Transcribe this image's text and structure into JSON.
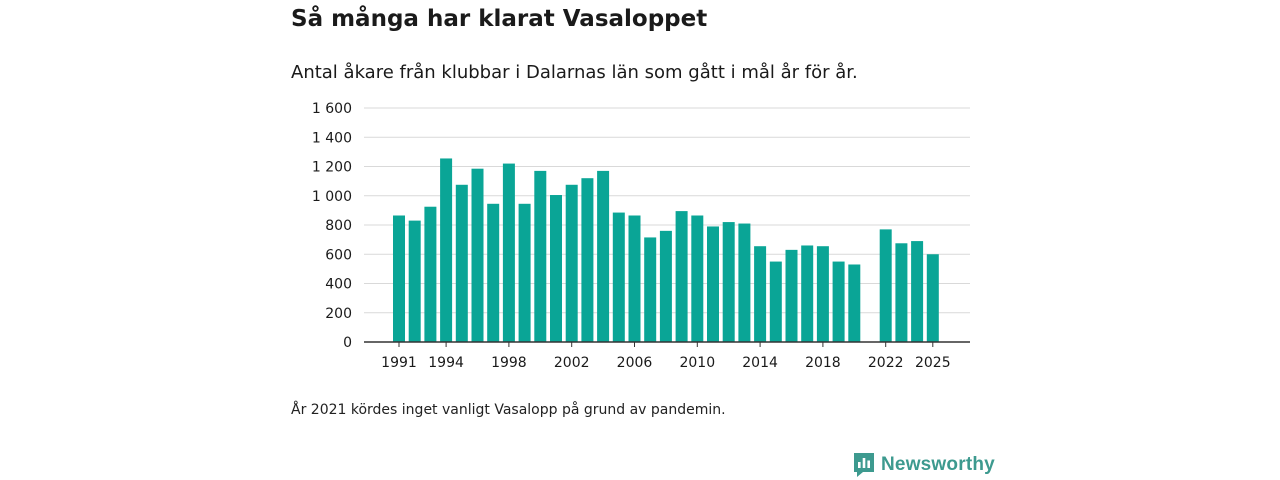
{
  "chart_data": {
    "type": "bar",
    "title": "Så många har klarat Vasaloppet",
    "subtitle": "Antal åkare från klubbar i Dalarnas län som gått i mål år för år.",
    "xlabel": "",
    "ylabel": "",
    "ylim": [
      0,
      1600
    ],
    "yticks": [
      0,
      200,
      400,
      600,
      800,
      1000,
      1200,
      1400,
      1600
    ],
    "ytick_labels": [
      "0",
      "200",
      "400",
      "600",
      "800",
      "1 000",
      "1 200",
      "1 400",
      "1 600"
    ],
    "xtick_labels": [
      "1991",
      "1994",
      "1998",
      "2002",
      "2006",
      "2010",
      "2014",
      "2018",
      "2022",
      "2025"
    ],
    "grid": true,
    "color": "#0aa596",
    "x": [
      1991,
      1992,
      1993,
      1994,
      1995,
      1996,
      1997,
      1998,
      1999,
      2000,
      2001,
      2002,
      2003,
      2004,
      2005,
      2006,
      2007,
      2008,
      2009,
      2010,
      2011,
      2012,
      2013,
      2014,
      2015,
      2016,
      2017,
      2018,
      2019,
      2020,
      2021,
      2022,
      2023,
      2024,
      2025
    ],
    "values": [
      865,
      830,
      925,
      1255,
      1075,
      1185,
      945,
      1220,
      945,
      1170,
      1005,
      1075,
      1120,
      1170,
      885,
      865,
      715,
      760,
      895,
      865,
      790,
      820,
      810,
      655,
      550,
      630,
      660,
      655,
      550,
      530,
      null,
      770,
      675,
      690,
      600
    ],
    "note": "År 2021 kördes inget vanligt Vasalopp på grund av pandemin."
  },
  "brand": {
    "name": "Newsworthy"
  }
}
